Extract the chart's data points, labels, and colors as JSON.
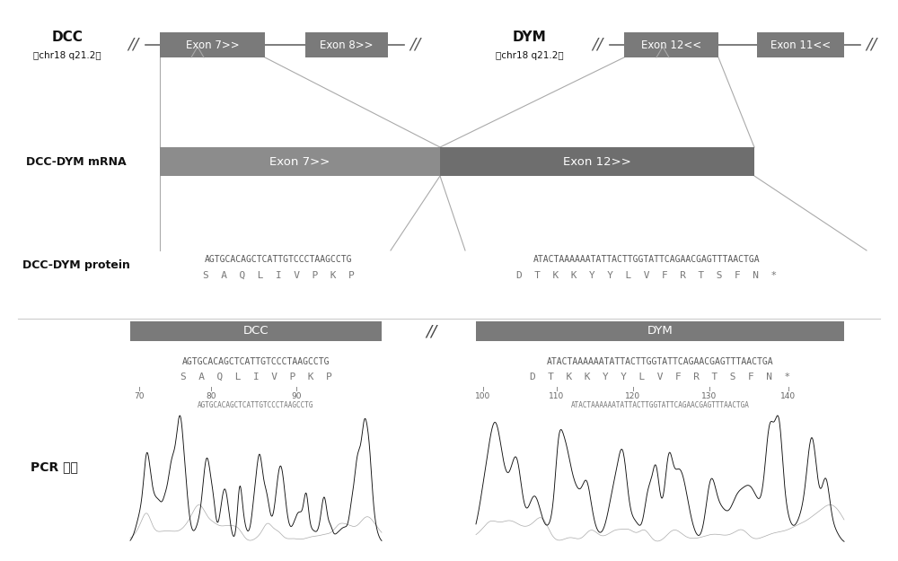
{
  "bg_color": "#ffffff",
  "box_color": "#7a7a7a",
  "box_text_color": "#ffffff",
  "line_color": "#aaaaaa",
  "dcc_exon7": "Exon 7>>",
  "dcc_exon8": "Exon 8>>",
  "dym_exon12": "Exon 12<<",
  "dym_exon11": "Exon 11<<",
  "mrna_exon7": "Exon 7>>",
  "mrna_exon12": "Exon 12>>",
  "dcc_box_label": "DCC",
  "dym_box_label": "DYM",
  "dna_left": "AGTGCACAGCTCATTGTCCCTAAGCCTG",
  "aa_left": "S  A  Q  L  I  V  P  K  P",
  "dna_right": "ATACTAAAAAATATTACTTGGTATTCAGAACGAGTTTAACTGA",
  "aa_right": "D  T  K  K  Y  Y  L  V  F  R  T  S  F  N  *",
  "pcr_left_ticks": [
    "70",
    "80",
    "90"
  ],
  "pcr_left_seq": "AGTGCACAGCTCATTGTCCCTAAGCCTG",
  "pcr_right_ticks": [
    "100",
    "110",
    "120",
    "130",
    "140"
  ],
  "pcr_right_seq": "ATACTAAAAAATATTACTTGGTATTCAGAACGAGTTTAACTGA"
}
